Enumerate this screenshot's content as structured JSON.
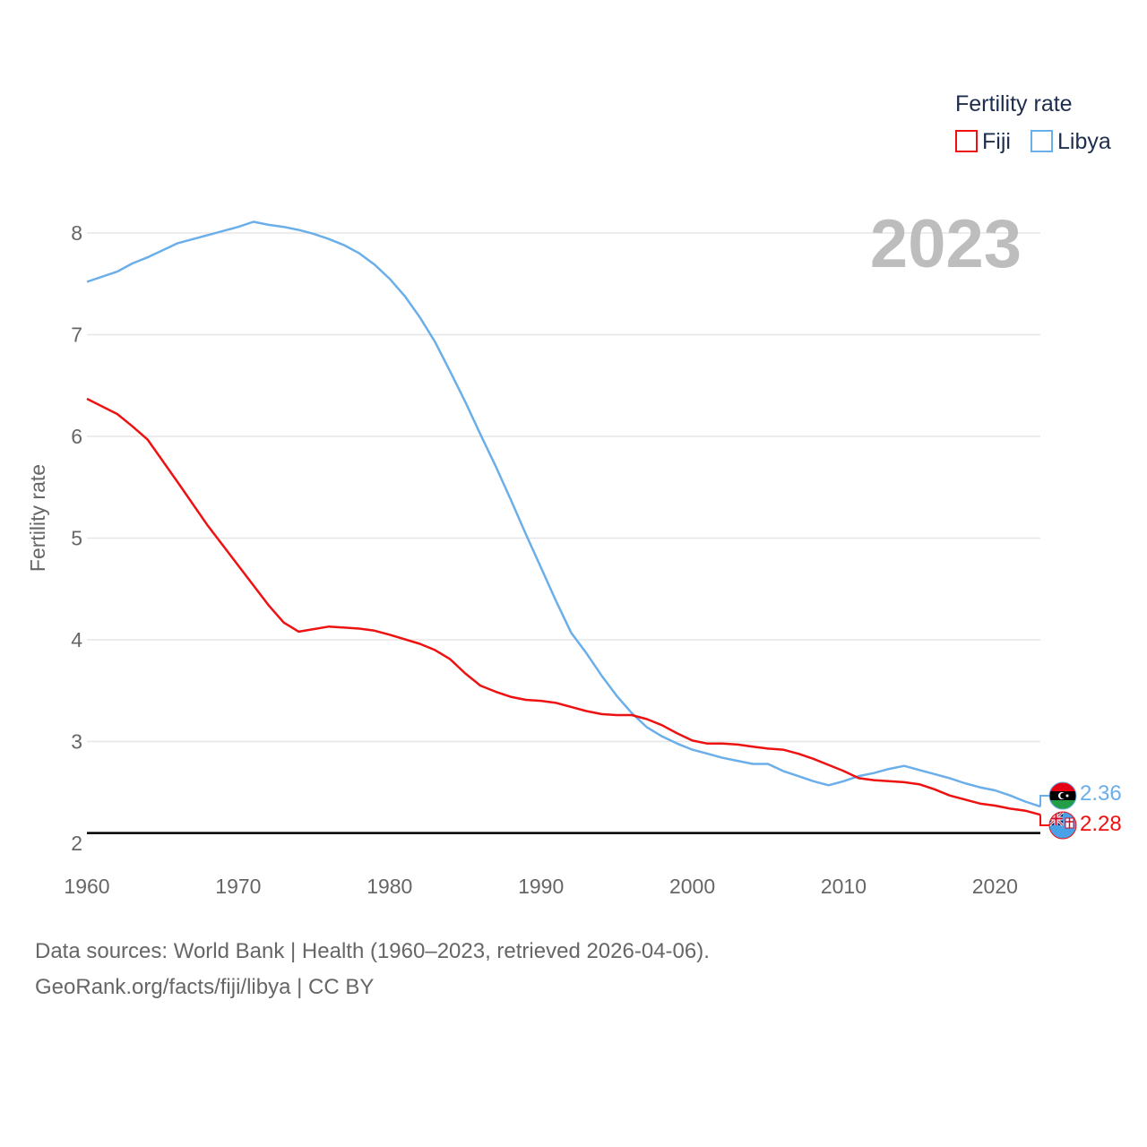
{
  "chart_data": {
    "type": "line",
    "legend_title": "Fertility rate",
    "ylabel": "Fertility rate",
    "xlabel": "",
    "year_label": "2023",
    "xlim": [
      1960,
      2023
    ],
    "ylim": [
      2,
      8.5
    ],
    "x_ticks": [
      1960,
      1970,
      1980,
      1990,
      2000,
      2010,
      2020
    ],
    "y_ticks": [
      2,
      3,
      4,
      5,
      6,
      7,
      8
    ],
    "reference_line": 2.1,
    "legend_placement": "top-right",
    "series": [
      {
        "name": "Fiji",
        "color": "#ee1111",
        "flag_icon": "fiji-flag-icon",
        "end_label": "2.28",
        "x": [
          1960,
          1962,
          1963,
          1964,
          1966,
          1968,
          1970,
          1972,
          1973,
          1974,
          1976,
          1978,
          1979,
          1980,
          1982,
          1983,
          1984,
          1985,
          1986,
          1987,
          1988,
          1989,
          1990,
          1991,
          1992,
          1993,
          1994,
          1995,
          1996,
          1997,
          1998,
          1999,
          2000,
          2001,
          2002,
          2003,
          2004,
          2005,
          2006,
          2007,
          2008,
          2009,
          2010,
          2011,
          2012,
          2013,
          2014,
          2015,
          2016,
          2017,
          2018,
          2019,
          2020,
          2021,
          2022,
          2023
        ],
        "values": [
          6.37,
          6.22,
          6.1,
          5.97,
          5.55,
          5.12,
          4.73,
          4.34,
          4.17,
          4.08,
          4.13,
          4.11,
          4.09,
          4.05,
          3.96,
          3.9,
          3.81,
          3.67,
          3.55,
          3.49,
          3.44,
          3.41,
          3.4,
          3.38,
          3.34,
          3.3,
          3.27,
          3.26,
          3.26,
          3.22,
          3.16,
          3.08,
          3.01,
          2.98,
          2.98,
          2.97,
          2.95,
          2.93,
          2.92,
          2.88,
          2.83,
          2.77,
          2.71,
          2.64,
          2.62,
          2.61,
          2.6,
          2.58,
          2.53,
          2.47,
          2.43,
          2.39,
          2.37,
          2.34,
          2.32,
          2.28
        ]
      },
      {
        "name": "Libya",
        "color": "#6aaeea",
        "flag_icon": "libya-flag-icon",
        "end_label": "2.36",
        "x": [
          1960,
          1962,
          1963,
          1964,
          1966,
          1968,
          1970,
          1971,
          1972,
          1973,
          1974,
          1975,
          1976,
          1977,
          1978,
          1979,
          1980,
          1981,
          1982,
          1983,
          1984,
          1985,
          1986,
          1987,
          1988,
          1989,
          1990,
          1991,
          1992,
          1993,
          1994,
          1995,
          1996,
          1997,
          1998,
          1999,
          2000,
          2001,
          2002,
          2003,
          2004,
          2005,
          2006,
          2007,
          2008,
          2009,
          2010,
          2011,
          2012,
          2013,
          2014,
          2015,
          2016,
          2017,
          2018,
          2019,
          2020,
          2021,
          2022,
          2023
        ],
        "values": [
          7.52,
          7.62,
          7.7,
          7.76,
          7.9,
          7.98,
          8.06,
          8.11,
          8.08,
          8.06,
          8.03,
          7.99,
          7.94,
          7.88,
          7.8,
          7.69,
          7.55,
          7.38,
          7.17,
          6.93,
          6.64,
          6.34,
          6.02,
          5.71,
          5.38,
          5.04,
          4.71,
          4.38,
          4.07,
          3.87,
          3.65,
          3.45,
          3.28,
          3.14,
          3.05,
          2.98,
          2.92,
          2.88,
          2.84,
          2.81,
          2.78,
          2.78,
          2.71,
          2.66,
          2.61,
          2.57,
          2.61,
          2.66,
          2.69,
          2.73,
          2.76,
          2.72,
          2.68,
          2.64,
          2.59,
          2.55,
          2.52,
          2.47,
          2.41,
          2.36
        ]
      }
    ]
  },
  "footer": {
    "line1": "Data sources: World Bank | Health (1960–2023, retrieved 2026-04-06).",
    "line2": "GeoRank.org/facts/fiji/libya | CC BY"
  }
}
